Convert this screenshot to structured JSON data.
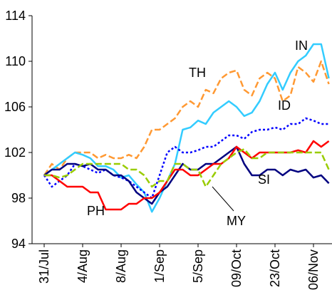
{
  "chart_data": {
    "type": "line",
    "categories": [
      "31/Jul",
      null,
      null,
      null,
      null,
      "4/Aug",
      null,
      null,
      null,
      null,
      "8/Aug",
      null,
      null,
      null,
      null,
      "1/Sep",
      null,
      null,
      null,
      null,
      "5/Sep",
      null,
      null,
      null,
      null,
      "09/Oct",
      null,
      null,
      null,
      null,
      "23/Oct",
      null,
      null,
      null,
      null,
      "06/Nov",
      null,
      null
    ],
    "ylim": [
      94,
      114
    ],
    "yticks": [
      94,
      98,
      102,
      106,
      110,
      114
    ],
    "series": [
      {
        "name": "TH",
        "color": "#ff9933",
        "dash": "dashed",
        "values": [
          100,
          101,
          100.5,
          101.5,
          102,
          102,
          102,
          101.5,
          101.8,
          101.5,
          101.5,
          101.8,
          101.5,
          102.5,
          104,
          104,
          104.5,
          105,
          106,
          106.5,
          106,
          107.5,
          107.2,
          108.5,
          109,
          109.2,
          107.5,
          107,
          108.5,
          109,
          108.5,
          106.5,
          107,
          109.5,
          109,
          108.2,
          110,
          108
        ]
      },
      {
        "name": "IN",
        "color": "#33ccff",
        "dash": "solid",
        "values": [
          100,
          100.5,
          101,
          101.5,
          102,
          101.8,
          101.5,
          100.8,
          100.8,
          100.5,
          99.8,
          100,
          99.2,
          98.5,
          96.8,
          98,
          99.5,
          101,
          104,
          104.2,
          104.8,
          104.5,
          105.5,
          106,
          106.5,
          106,
          105.2,
          105.5,
          106.5,
          108,
          109,
          107.5,
          109,
          110,
          110.5,
          111.5,
          111.5,
          108.5
        ]
      },
      {
        "name": "ID",
        "color": "#0000ff",
        "dash": "dotted",
        "values": [
          100,
          99,
          99.5,
          100,
          101,
          100.8,
          100.5,
          100.2,
          100.5,
          100,
          99.8,
          99.5,
          99,
          98.5,
          98,
          100,
          102,
          102.5,
          102,
          102,
          102.2,
          102.5,
          102.5,
          103,
          103.5,
          103.5,
          103.2,
          103.8,
          104,
          104,
          104.2,
          104,
          104.5,
          104.5,
          105,
          104.8,
          104.5,
          104.5
        ]
      },
      {
        "name": "SI",
        "color": "#000080",
        "dash": "solid",
        "values": [
          100,
          100.5,
          100.5,
          101,
          101,
          100.8,
          101,
          100.5,
          100.5,
          100,
          100,
          99.5,
          98.5,
          98,
          97.5,
          98.5,
          99,
          100,
          101,
          100.5,
          100.5,
          101,
          101,
          101.5,
          102,
          102.5,
          101,
          100,
          100,
          100.5,
          100.5,
          100,
          100.5,
          100.3,
          100.5,
          99.8,
          100,
          99.3
        ]
      },
      {
        "name": "PH",
        "color": "#ff0000",
        "dash": "solid",
        "values": [
          100,
          100,
          99.5,
          99,
          99,
          99,
          98.5,
          98.5,
          97,
          97,
          97,
          97.5,
          97.5,
          98,
          98,
          98.5,
          99.5,
          100.5,
          100.5,
          100,
          100,
          100.5,
          101,
          101,
          101.5,
          102.5,
          102,
          101.5,
          102,
          102,
          102,
          102,
          102,
          102.2,
          102,
          103,
          102.5,
          103
        ]
      },
      {
        "name": "MY",
        "color": "#99cc00",
        "dash": "dashed",
        "values": [
          100,
          100,
          99.8,
          100,
          100.5,
          101,
          101,
          101,
          101,
          101,
          101,
          100.5,
          100.5,
          100,
          99,
          99.5,
          99.5,
          101,
          101,
          100.5,
          100.5,
          99,
          100,
          101,
          101.5,
          102,
          102.3,
          101.5,
          101.5,
          102,
          102,
          102,
          102,
          102,
          102,
          102,
          102,
          100.5
        ]
      }
    ]
  }
}
